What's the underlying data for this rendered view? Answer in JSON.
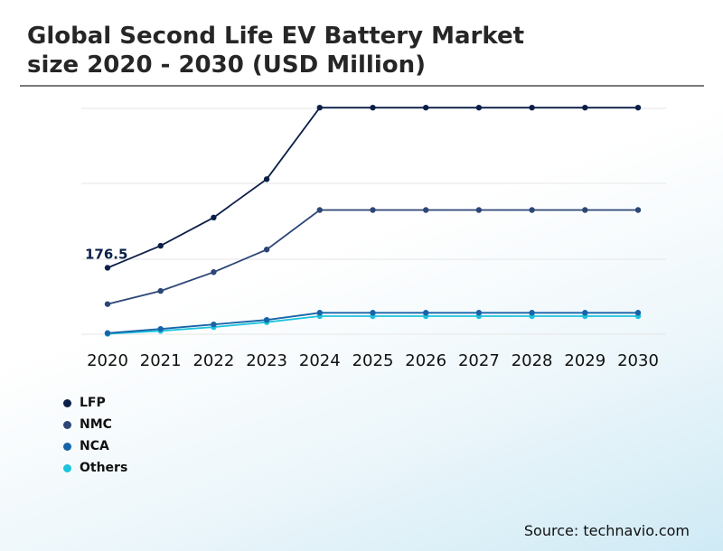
{
  "title": {
    "line1": "Global Second Life EV Battery Market",
    "line2": "size 2020 - 2030 (USD Million)"
  },
  "source": "Source: technavio.com",
  "chart_data": {
    "type": "line",
    "x": [
      "2020",
      "2021",
      "2022",
      "2023",
      "2024",
      "2025",
      "2026",
      "2027",
      "2028",
      "2029",
      "2030"
    ],
    "ylim": [
      0,
      600
    ],
    "grid": true,
    "legend_position": "bottom-left",
    "annotations": [
      {
        "series": "LFP",
        "x": "2020",
        "label": "176.5"
      }
    ],
    "series": [
      {
        "name": "LFP",
        "color": "#0b1f48",
        "values": [
          176.5,
          235,
          310,
          412,
          602,
          602,
          602,
          602,
          602,
          602,
          602
        ]
      },
      {
        "name": "NMC",
        "color": "#2d4676",
        "values": [
          80,
          115,
          165,
          225,
          330,
          330,
          330,
          330,
          330,
          330,
          330
        ]
      },
      {
        "name": "NCA",
        "color": "#1764a8",
        "values": [
          3,
          14,
          26,
          38,
          57,
          57,
          57,
          57,
          57,
          57,
          57
        ]
      },
      {
        "name": "Others",
        "color": "#1cc3dc",
        "values": [
          1,
          9,
          19,
          32,
          48,
          48,
          48,
          48,
          48,
          48,
          48
        ]
      }
    ]
  }
}
